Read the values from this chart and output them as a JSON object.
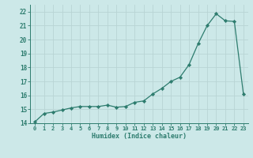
{
  "x": [
    0,
    1,
    2,
    3,
    4,
    5,
    6,
    7,
    8,
    9,
    10,
    11,
    12,
    13,
    14,
    15,
    16,
    17,
    18,
    19,
    20,
    21,
    22,
    23
  ],
  "y": [
    14.1,
    14.7,
    14.8,
    14.95,
    15.1,
    15.2,
    15.2,
    15.2,
    15.3,
    15.15,
    15.2,
    15.5,
    15.6,
    16.1,
    16.5,
    17.0,
    17.3,
    18.2,
    19.7,
    21.0,
    21.85,
    21.35,
    21.3,
    16.1
  ],
  "xlabel": "Humidex (Indice chaleur)",
  "ylim": [
    14,
    22.5
  ],
  "xlim": [
    -0.5,
    23.5
  ],
  "yticks": [
    14,
    15,
    16,
    17,
    18,
    19,
    20,
    21,
    22
  ],
  "xtick_labels": [
    "0",
    "1",
    "2",
    "3",
    "4",
    "5",
    "6",
    "7",
    "8",
    "9",
    "10",
    "11",
    "12",
    "13",
    "14",
    "15",
    "16",
    "17",
    "18",
    "19",
    "20",
    "21",
    "22",
    "23"
  ],
  "line_color": "#2d7c6e",
  "marker_color": "#2d7c6e",
  "bg_color": "#cce8e8",
  "grid_color": "#b8d4d4",
  "axis_color": "#2d7c6e",
  "text_color": "#2d7c6e"
}
